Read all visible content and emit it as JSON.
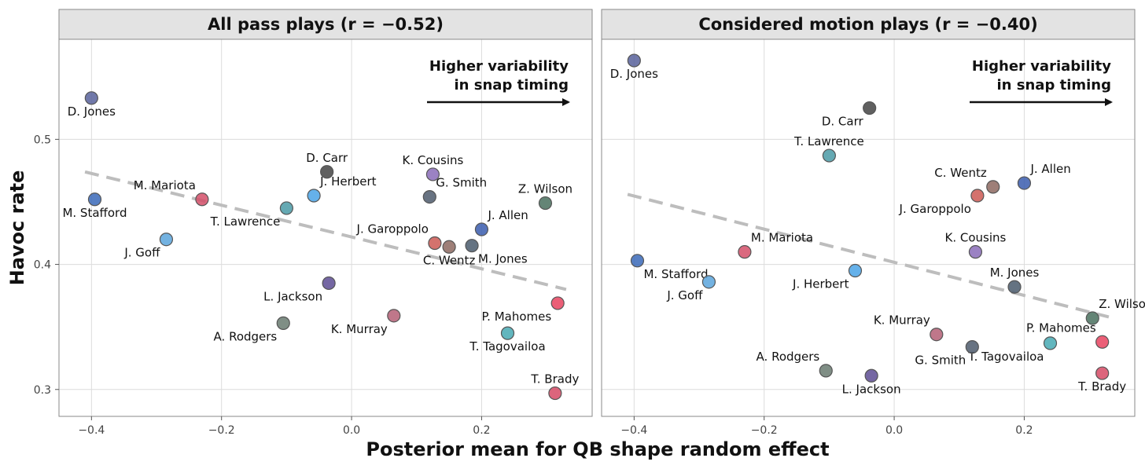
{
  "figure": {
    "xlabel": "Posterior mean for QB shape random effect",
    "ylabel": "Havoc rate",
    "colors": {
      "strip_bg": "#e3e3e3",
      "grid": "#dcdcdc",
      "trend": "#bdbdbd",
      "point_stroke": "#555555"
    }
  },
  "chart_data": [
    {
      "type": "scatter",
      "title": "All pass plays (r = −0.52)",
      "annotation": [
        "Higher variability",
        "in snap timing"
      ],
      "xlabel": "Posterior mean for QB shape random effect",
      "ylabel": "Havoc rate",
      "xlim": [
        -0.45,
        0.37
      ],
      "ylim": [
        0.2785,
        0.58
      ],
      "x_ticks": [
        -0.4,
        -0.2,
        0.0,
        0.2
      ],
      "x_tick_labels": [
        "−0.4",
        "−0.2",
        "0.0",
        "0.2"
      ],
      "y_ticks": [
        0.3,
        0.4,
        0.5
      ],
      "y_tick_labels": [
        "0.3",
        "0.4",
        "0.5"
      ],
      "grid": true,
      "trend_line": {
        "style": "dashed",
        "x": [
          -0.41,
          0.33
        ],
        "y": [
          0.474,
          0.38
        ]
      },
      "points": [
        {
          "label": "D. Jones",
          "x": -0.4,
          "y": 0.533,
          "color": "#58629b",
          "label_pos": "below"
        },
        {
          "label": "M. Stafford",
          "x": -0.395,
          "y": 0.452,
          "color": "#3a68b8",
          "label_pos": "below"
        },
        {
          "label": "J. Goff",
          "x": -0.285,
          "y": 0.42,
          "color": "#5aa5dc",
          "label_pos": "below-left"
        },
        {
          "label": "M. Mariota",
          "x": -0.23,
          "y": 0.452,
          "color": "#d44f69",
          "label_pos": "above-left"
        },
        {
          "label": "T. Lawrence",
          "x": -0.1,
          "y": 0.445,
          "color": "#4a9aa6",
          "label_pos": "below-left"
        },
        {
          "label": "J. Herbert",
          "x": -0.058,
          "y": 0.455,
          "color": "#4aa3e6",
          "label_pos": "above-right"
        },
        {
          "label": "D. Carr",
          "x": -0.038,
          "y": 0.474,
          "color": "#444444",
          "label_pos": "above"
        },
        {
          "label": "L. Jackson",
          "x": -0.035,
          "y": 0.385,
          "color": "#5d4c93",
          "label_pos": "below-left"
        },
        {
          "label": "A. Rodgers",
          "x": -0.105,
          "y": 0.353,
          "color": "#687a70",
          "label_pos": "below-left"
        },
        {
          "label": "K. Cousins",
          "x": 0.125,
          "y": 0.472,
          "color": "#8a6cb8",
          "label_pos": "above"
        },
        {
          "label": "G. Smith",
          "x": 0.12,
          "y": 0.454,
          "color": "#4e5a6c",
          "label_pos": "above-right"
        },
        {
          "label": "J. Garoppolo",
          "x": 0.128,
          "y": 0.417,
          "color": "#cd5954",
          "label_pos": "above-left"
        },
        {
          "label": "C. Wentz",
          "x": 0.15,
          "y": 0.414,
          "color": "#8d6860",
          "label_pos": "below"
        },
        {
          "label": "M. Jones",
          "x": 0.185,
          "y": 0.415,
          "color": "#4a5a6c",
          "label_pos": "below-right"
        },
        {
          "label": "J. Allen",
          "x": 0.2,
          "y": 0.428,
          "color": "#3a5cae",
          "label_pos": "above-right"
        },
        {
          "label": "K. Murray",
          "x": 0.065,
          "y": 0.359,
          "color": "#b45f76",
          "label_pos": "below-left"
        },
        {
          "label": "P. Mahomes",
          "x": 0.317,
          "y": 0.369,
          "color": "#e8435f",
          "label_pos": "below-left"
        },
        {
          "label": "T. Tagovailoa",
          "x": 0.24,
          "y": 0.345,
          "color": "#46a9b3",
          "label_pos": "below"
        },
        {
          "label": "Z. Wilson",
          "x": 0.298,
          "y": 0.449,
          "color": "#49705e",
          "label_pos": "above"
        },
        {
          "label": "T. Brady",
          "x": 0.313,
          "y": 0.297,
          "color": "#d64a65",
          "label_pos": "above"
        }
      ]
    },
    {
      "type": "scatter",
      "title": "Considered motion plays (r = −0.40)",
      "annotation": [
        "Higher variability",
        "in snap timing"
      ],
      "xlabel": "Posterior mean for QB shape random effect",
      "ylabel": "Havoc rate",
      "xlim": [
        -0.45,
        0.37
      ],
      "ylim": [
        0.2785,
        0.58
      ],
      "x_ticks": [
        -0.4,
        -0.2,
        0.0,
        0.2
      ],
      "x_tick_labels": [
        "−0.4",
        "−0.2",
        "0.0",
        "0.2"
      ],
      "y_ticks": [
        0.3,
        0.4,
        0.5
      ],
      "y_tick_labels": [
        "0.3",
        "0.4",
        "0.5"
      ],
      "grid": true,
      "trend_line": {
        "style": "dashed",
        "x": [
          -0.41,
          0.33
        ],
        "y": [
          0.456,
          0.358
        ]
      },
      "points": [
        {
          "label": "D. Jones",
          "x": -0.4,
          "y": 0.563,
          "color": "#58629b",
          "label_pos": "below"
        },
        {
          "label": "D. Carr",
          "x": -0.038,
          "y": 0.525,
          "color": "#444444",
          "label_pos": "below-left"
        },
        {
          "label": "T. Lawrence",
          "x": -0.1,
          "y": 0.487,
          "color": "#4a9aa6",
          "label_pos": "above"
        },
        {
          "label": "C. Wentz",
          "x": 0.152,
          "y": 0.462,
          "color": "#8d6860",
          "label_pos": "above-left"
        },
        {
          "label": "J. Allen",
          "x": 0.2,
          "y": 0.465,
          "color": "#3a5cae",
          "label_pos": "above-right"
        },
        {
          "label": "J. Garoppolo",
          "x": 0.128,
          "y": 0.455,
          "color": "#cd5954",
          "label_pos": "below-left"
        },
        {
          "label": "K. Cousins",
          "x": 0.125,
          "y": 0.41,
          "color": "#8a6cb8",
          "label_pos": "above"
        },
        {
          "label": "M. Mariota",
          "x": -0.23,
          "y": 0.41,
          "color": "#d44f69",
          "label_pos": "above-right"
        },
        {
          "label": "M. Stafford",
          "x": -0.395,
          "y": 0.403,
          "color": "#3a68b8",
          "label_pos": "below-right"
        },
        {
          "label": "J. Goff",
          "x": -0.285,
          "y": 0.386,
          "color": "#5aa5dc",
          "label_pos": "below-left"
        },
        {
          "label": "J. Herbert",
          "x": -0.06,
          "y": 0.395,
          "color": "#4aa3e6",
          "label_pos": "below-left"
        },
        {
          "label": "M. Jones",
          "x": 0.185,
          "y": 0.382,
          "color": "#4a5a6c",
          "label_pos": "above"
        },
        {
          "label": "Z. Wilson",
          "x": 0.305,
          "y": 0.357,
          "color": "#49705e",
          "label_pos": "above-right"
        },
        {
          "label": "P. Mahomes",
          "x": 0.32,
          "y": 0.338,
          "color": "#e8435f",
          "label_pos": "above-left"
        },
        {
          "label": "T. Tagovailoa",
          "x": 0.24,
          "y": 0.337,
          "color": "#46a9b3",
          "label_pos": "below-left"
        },
        {
          "label": "K. Murray",
          "x": 0.065,
          "y": 0.344,
          "color": "#b45f76",
          "label_pos": "above-left"
        },
        {
          "label": "G. Smith",
          "x": 0.12,
          "y": 0.334,
          "color": "#4e5a6c",
          "label_pos": "below-left"
        },
        {
          "label": "A. Rodgers",
          "x": -0.105,
          "y": 0.315,
          "color": "#687a70",
          "label_pos": "above-left"
        },
        {
          "label": "L. Jackson",
          "x": -0.035,
          "y": 0.311,
          "color": "#5d4c93",
          "label_pos": "below"
        },
        {
          "label": "T. Brady",
          "x": 0.32,
          "y": 0.313,
          "color": "#d64a65",
          "label_pos": "below"
        }
      ]
    }
  ]
}
